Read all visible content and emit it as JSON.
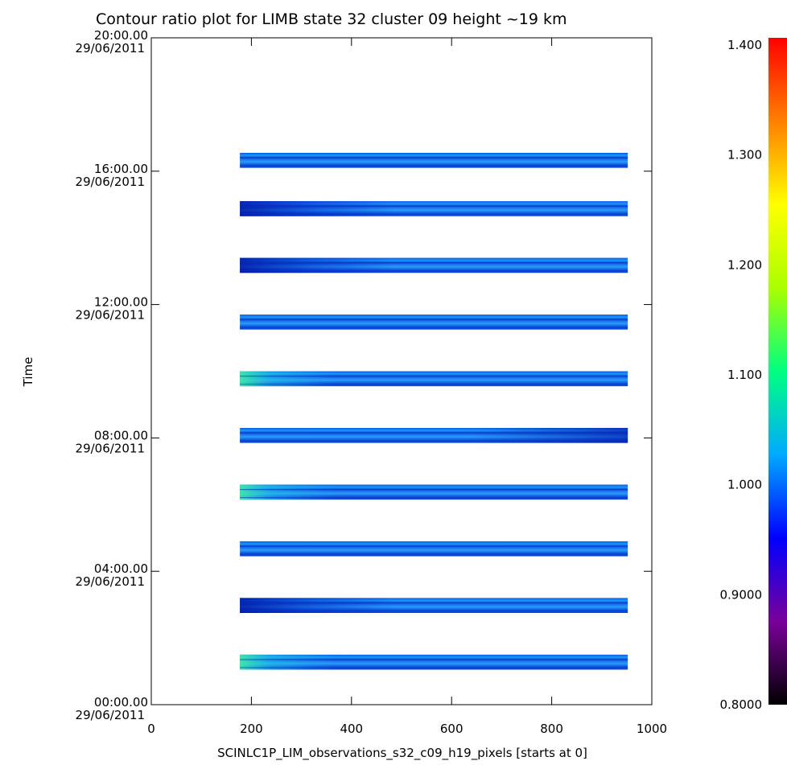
{
  "chart_data": {
    "type": "heatmap",
    "title": "Contour ratio plot for LIMB state 32 cluster 09 height ~19 km",
    "xlabel": "SCINLC1P_LIM_observations_s32_c09_h19_pixels [starts at 0]",
    "ylabel": "Time",
    "xlim": [
      0,
      1000
    ],
    "x_ticks": [
      {
        "value": 0,
        "label": "0"
      },
      {
        "value": 200,
        "label": "200"
      },
      {
        "value": 400,
        "label": "400"
      },
      {
        "value": 600,
        "label": "600"
      },
      {
        "value": 800,
        "label": "800"
      },
      {
        "value": 1000,
        "label": "1000"
      }
    ],
    "ylim_hours": [
      0,
      20
    ],
    "y_ticks": [
      {
        "hours": 0,
        "time": "00:00.00",
        "date": "29/06/2011"
      },
      {
        "hours": 4,
        "time": "04:00.00",
        "date": "29/06/2011"
      },
      {
        "hours": 8,
        "time": "08:00.00",
        "date": "29/06/2011"
      },
      {
        "hours": 12,
        "time": "12:00.00",
        "date": "29/06/2011"
      },
      {
        "hours": 16,
        "time": "16:00.00",
        "date": "29/06/2011"
      },
      {
        "hours": 20,
        "time": "20:00.00",
        "date": "29/06/2011"
      }
    ],
    "observation_bands": [
      {
        "start_hours": 1.05,
        "end_hours": 1.5,
        "x_start": 177,
        "x_end": 952,
        "highlight": "green-left"
      },
      {
        "start_hours": 2.75,
        "end_hours": 3.2,
        "x_start": 177,
        "x_end": 952,
        "highlight": "dark-left"
      },
      {
        "start_hours": 4.45,
        "end_hours": 4.9,
        "x_start": 177,
        "x_end": 952,
        "highlight": "none"
      },
      {
        "start_hours": 6.15,
        "end_hours": 6.6,
        "x_start": 177,
        "x_end": 952,
        "highlight": "green-left"
      },
      {
        "start_hours": 7.85,
        "end_hours": 8.3,
        "x_start": 177,
        "x_end": 952,
        "highlight": "dark-right"
      },
      {
        "start_hours": 9.55,
        "end_hours": 10.0,
        "x_start": 177,
        "x_end": 952,
        "highlight": "green-left"
      },
      {
        "start_hours": 11.25,
        "end_hours": 11.7,
        "x_start": 177,
        "x_end": 952,
        "highlight": "none"
      },
      {
        "start_hours": 12.95,
        "end_hours": 13.4,
        "x_start": 177,
        "x_end": 952,
        "highlight": "dark-left"
      },
      {
        "start_hours": 14.65,
        "end_hours": 15.1,
        "x_start": 177,
        "x_end": 952,
        "highlight": "dark-left"
      },
      {
        "start_hours": 16.1,
        "end_hours": 16.55,
        "x_start": 177,
        "x_end": 952,
        "highlight": "none"
      }
    ],
    "colorbar": {
      "min": 0.8,
      "max": 1.4,
      "tick_values": [
        0.8,
        0.9,
        1.0,
        1.1,
        1.2,
        1.3,
        1.4
      ],
      "tick_labels": [
        "0.8000",
        "0.9000",
        "1.000",
        "1.100",
        "1.200",
        "1.300",
        "1.400"
      ],
      "colormap": [
        "#000000",
        "#7a009a",
        "#0000ff",
        "#00aaff",
        "#00ff80",
        "#aaff00",
        "#ffff00",
        "#ff8000",
        "#ff0000"
      ]
    }
  }
}
